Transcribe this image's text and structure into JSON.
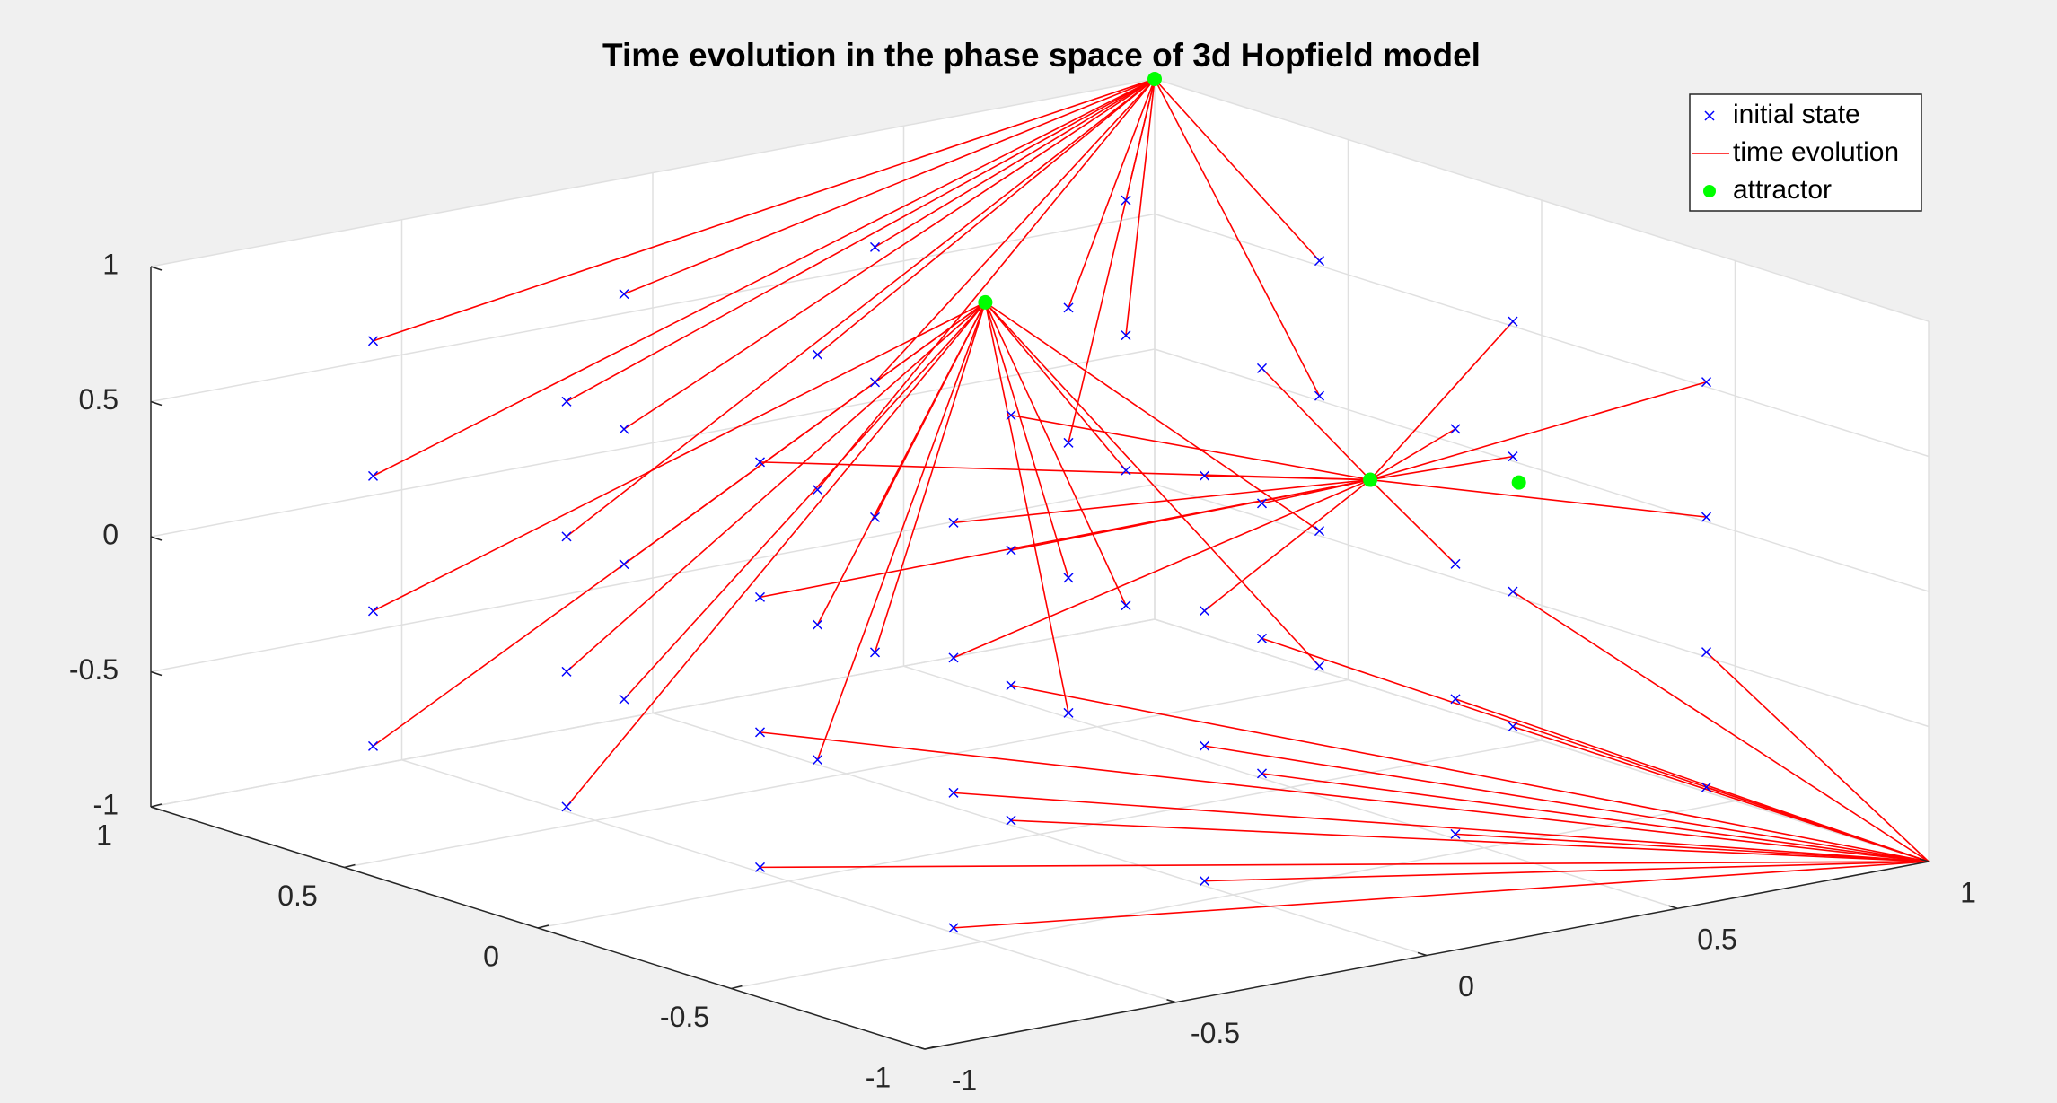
{
  "chart_data": {
    "type": "phase3d",
    "title": "Time evolution in the phase space of 3d Hopfield model",
    "xlim": [
      -1,
      1
    ],
    "ylim": [
      -1,
      1
    ],
    "zlim": [
      -1,
      1
    ],
    "xticks": [
      -1,
      -0.5,
      0,
      0.5,
      1
    ],
    "yticks": [
      -1,
      -0.5,
      0,
      0.5,
      1
    ],
    "zticks": [
      -1,
      -0.5,
      0,
      0.5,
      1
    ],
    "grid": true,
    "legend": "northeast",
    "series": [
      {
        "name": "initial state",
        "color": "#0000ff"
      },
      {
        "name": "time evolution",
        "color": "#ff0000",
        "paths": [
          [
            [
              -0.75,
              -0.75,
              -0.75
            ],
            [
              1,
              -1,
              -1
            ]
          ],
          [
            [
              -0.75,
              -0.75,
              -0.25
            ],
            [
              1,
              -1,
              -1
            ]
          ],
          [
            [
              -0.75,
              -0.75,
              0.25
            ],
            [
              0.35,
              -0.4,
              0.37
            ]
          ],
          [
            [
              -0.75,
              -0.75,
              0.75
            ],
            [
              0.35,
              -0.4,
              0.37
            ]
          ],
          [
            [
              -0.75,
              -0.25,
              -0.75
            ],
            [
              1,
              -1,
              -1
            ]
          ],
          [
            [
              -0.75,
              -0.25,
              -0.25
            ],
            [
              1,
              -1,
              -1
            ]
          ],
          [
            [
              -0.75,
              -0.25,
              0.25
            ],
            [
              0.35,
              -0.4,
              0.37
            ]
          ],
          [
            [
              -0.75,
              -0.25,
              0.75
            ],
            [
              0.35,
              -0.4,
              0.37
            ]
          ],
          [
            [
              -0.75,
              0.25,
              -0.75
            ],
            [
              0.2,
              0.4,
              0.72
            ]
          ],
          [
            [
              -0.75,
              0.25,
              -0.25
            ],
            [
              0.2,
              0.4,
              0.72
            ]
          ],
          [
            [
              -0.75,
              0.25,
              0.25
            ],
            [
              1,
              1,
              1
            ]
          ],
          [
            [
              -0.75,
              0.25,
              0.75
            ],
            [
              1,
              1,
              1
            ]
          ],
          [
            [
              -0.75,
              0.75,
              -0.75
            ],
            [
              0.2,
              0.4,
              0.72
            ]
          ],
          [
            [
              -0.75,
              0.75,
              -0.25
            ],
            [
              0.2,
              0.4,
              0.72
            ]
          ],
          [
            [
              -0.75,
              0.75,
              0.25
            ],
            [
              1,
              1,
              1
            ]
          ],
          [
            [
              -0.75,
              0.75,
              0.75
            ],
            [
              1,
              1,
              1
            ]
          ],
          [
            [
              -0.25,
              -0.75,
              -0.75
            ],
            [
              1,
              -1,
              -1
            ]
          ],
          [
            [
              -0.25,
              -0.75,
              -0.25
            ],
            [
              1,
              -1,
              -1
            ]
          ],
          [
            [
              -0.25,
              -0.75,
              0.25
            ],
            [
              0.35,
              -0.4,
              0.37
            ]
          ],
          [
            [
              -0.25,
              -0.75,
              0.75
            ],
            [
              0.35,
              -0.4,
              0.37
            ]
          ],
          [
            [
              -0.25,
              -0.25,
              -0.75
            ],
            [
              1,
              -1,
              -1
            ]
          ],
          [
            [
              -0.25,
              -0.25,
              -0.25
            ],
            [
              1,
              -1,
              -1
            ]
          ],
          [
            [
              -0.25,
              -0.25,
              0.25
            ],
            [
              0.35,
              -0.4,
              0.37
            ]
          ],
          [
            [
              -0.25,
              -0.25,
              0.75
            ],
            [
              0.35,
              -0.4,
              0.37
            ]
          ],
          [
            [
              -0.25,
              0.25,
              -0.75
            ],
            [
              0.2,
              0.4,
              0.72
            ]
          ],
          [
            [
              -0.25,
              0.25,
              -0.25
            ],
            [
              0.2,
              0.4,
              0.72
            ]
          ],
          [
            [
              -0.25,
              0.25,
              0.25
            ],
            [
              1,
              1,
              1
            ]
          ],
          [
            [
              -0.25,
              0.25,
              0.75
            ],
            [
              1,
              1,
              1
            ]
          ],
          [
            [
              -0.25,
              0.75,
              -0.75
            ],
            [
              0.2,
              0.4,
              0.72
            ]
          ],
          [
            [
              -0.25,
              0.75,
              -0.25
            ],
            [
              0.2,
              0.4,
              0.72
            ]
          ],
          [
            [
              -0.25,
              0.75,
              0.25
            ],
            [
              1,
              1,
              1
            ]
          ],
          [
            [
              -0.25,
              0.75,
              0.75
            ],
            [
              1,
              1,
              1
            ]
          ],
          [
            [
              0.25,
              -0.75,
              -0.75
            ],
            [
              1,
              -1,
              -1
            ]
          ],
          [
            [
              0.25,
              -0.75,
              -0.25
            ],
            [
              1,
              -1,
              -1
            ]
          ],
          [
            [
              0.25,
              -0.75,
              0.25
            ],
            [
              0.35,
              -0.4,
              0.37
            ]
          ],
          [
            [
              0.25,
              -0.75,
              0.75
            ],
            [
              0.35,
              -0.4,
              0.37
            ]
          ],
          [
            [
              0.25,
              -0.25,
              -0.75
            ],
            [
              1,
              -1,
              -1
            ]
          ],
          [
            [
              0.25,
              -0.25,
              -0.25
            ],
            [
              1,
              -1,
              -1
            ]
          ],
          [
            [
              0.25,
              -0.25,
              0.25
            ],
            [
              0.35,
              -0.4,
              0.37
            ]
          ],
          [
            [
              0.25,
              -0.25,
              0.75
            ],
            [
              0.35,
              -0.4,
              0.37
            ]
          ],
          [
            [
              0.25,
              0.25,
              -0.75
            ],
            [
              0.2,
              0.4,
              0.72
            ]
          ],
          [
            [
              0.25,
              0.25,
              -0.25
            ],
            [
              0.2,
              0.4,
              0.72
            ]
          ],
          [
            [
              0.25,
              0.25,
              0.25
            ],
            [
              1,
              1,
              1
            ]
          ],
          [
            [
              0.25,
              0.25,
              0.75
            ],
            [
              1,
              1,
              1
            ]
          ],
          [
            [
              0.25,
              0.75,
              -0.75
            ],
            [
              0.2,
              0.4,
              0.72
            ]
          ],
          [
            [
              0.25,
              0.75,
              -0.25
            ],
            [
              0.2,
              0.4,
              0.72
            ]
          ],
          [
            [
              0.25,
              0.75,
              0.25
            ],
            [
              1,
              1,
              1
            ]
          ],
          [
            [
              0.25,
              0.75,
              0.75
            ],
            [
              1,
              1,
              1
            ]
          ],
          [
            [
              0.75,
              -0.75,
              -0.75
            ],
            [
              1,
              -1,
              -1
            ]
          ],
          [
            [
              0.75,
              -0.75,
              -0.25
            ],
            [
              1,
              -1,
              -1
            ]
          ],
          [
            [
              0.75,
              -0.75,
              0.25
            ],
            [
              0.35,
              -0.4,
              0.37
            ]
          ],
          [
            [
              0.75,
              -0.75,
              0.75
            ],
            [
              0.35,
              -0.4,
              0.37
            ]
          ],
          [
            [
              0.75,
              -0.25,
              -0.75
            ],
            [
              1,
              -1,
              -1
            ]
          ],
          [
            [
              0.75,
              -0.25,
              -0.25
            ],
            [
              1,
              -1,
              -1
            ]
          ],
          [
            [
              0.75,
              -0.25,
              0.25
            ],
            [
              0.35,
              -0.4,
              0.37
            ]
          ],
          [
            [
              0.75,
              -0.25,
              0.75
            ],
            [
              0.35,
              -0.4,
              0.37
            ]
          ],
          [
            [
              0.75,
              0.25,
              -0.75
            ],
            [
              0.2,
              0.4,
              0.72
            ]
          ],
          [
            [
              0.75,
              0.25,
              -0.25
            ],
            [
              0.2,
              0.4,
              0.72
            ]
          ],
          [
            [
              0.75,
              0.25,
              0.25
            ],
            [
              1,
              1,
              1
            ]
          ],
          [
            [
              0.75,
              0.25,
              0.75
            ],
            [
              1,
              1,
              1
            ]
          ],
          [
            [
              0.75,
              0.75,
              -0.75
            ],
            [
              0.2,
              0.4,
              0.72
            ]
          ],
          [
            [
              0.75,
              0.75,
              -0.25
            ],
            [
              0.2,
              0.4,
              0.72
            ]
          ],
          [
            [
              0.75,
              0.75,
              0.25
            ],
            [
              1,
              1,
              1
            ]
          ],
          [
            [
              0.75,
              0.75,
              0.75
            ],
            [
              1,
              1,
              1
            ]
          ]
        ]
      },
      {
        "name": "attractor",
        "color": "#00ff00",
        "points": [
          [
            1,
            1,
            1
          ],
          [
            0.2,
            0.4,
            0.72
          ],
          [
            0.35,
            -0.4,
            0.37
          ],
          [
            0.6,
            -0.46,
            0.3
          ]
        ]
      }
    ]
  }
}
